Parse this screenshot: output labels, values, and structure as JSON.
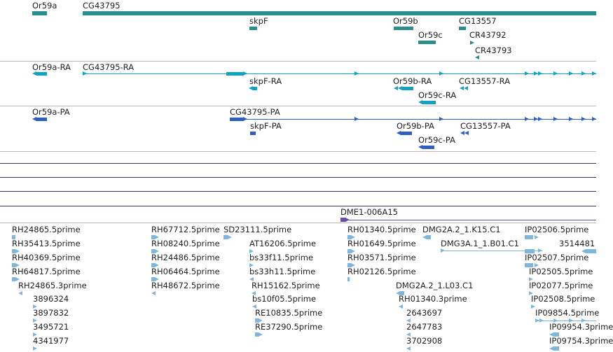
{
  "genes": {
    "labels": [
      "Or59a",
      "CG43795",
      "skpF",
      "Or59b",
      "Or59c",
      "CG13557",
      "CR43792",
      "CR43793"
    ]
  },
  "ra_track": {
    "labels": [
      "Or59a-RA",
      "CG43795-RA",
      "skpF-RA",
      "Or59b-RA",
      "Or59c-RA",
      "CG13557-RA"
    ]
  },
  "pa_track": {
    "labels": [
      "Or59a-PA",
      "CG43795-PA",
      "skpF-PA",
      "Or59b-PA",
      "Or59c-PA",
      "CG13557-PA"
    ]
  },
  "clone_track": {
    "label": "DME1-006A15"
  },
  "est_track": {
    "col1": [
      "RH24865.5prime",
      "RH35413.5prime",
      "RH40369.5prime",
      "RH64817.5prime",
      "RH24865.3prime",
      "3896324",
      "3897832",
      "3495721",
      "4341977"
    ],
    "col2": [
      "RH67712.5prime",
      "RH08240.5prime",
      "RH24486.5prime",
      "RH06464.5prime",
      "RH48672.5prime"
    ],
    "col3": [
      "SD23111.5prime",
      "AT16206.5prime",
      "bs33f11.5prime",
      "bs33h11.5prime",
      "RH15162.5prime",
      "bs10f05.5prime",
      "RE10835.5prime",
      "RE37290.5prime"
    ],
    "col4": [
      "RH01340.5prime",
      "RH01649.5prime",
      "RH03571.5prime",
      "RH02126.5prime"
    ],
    "col5": [
      "DMG2A.2_1.K15.C1",
      "DMG3A.1_1.B01.C1",
      "DMG2A.2_1.L03.C1",
      "RH01340.3prime",
      "2643697",
      "2647783",
      "3702908"
    ],
    "col6": [
      "IP02506.5prime",
      "IP02507.5prime",
      "IP02505.5prime",
      "IP02077.5prime",
      "IP02508.5prime",
      "IP09854.5prime",
      "IP09954.3prime",
      "IP09754.3prime"
    ],
    "col7": [
      "3514481"
    ]
  }
}
